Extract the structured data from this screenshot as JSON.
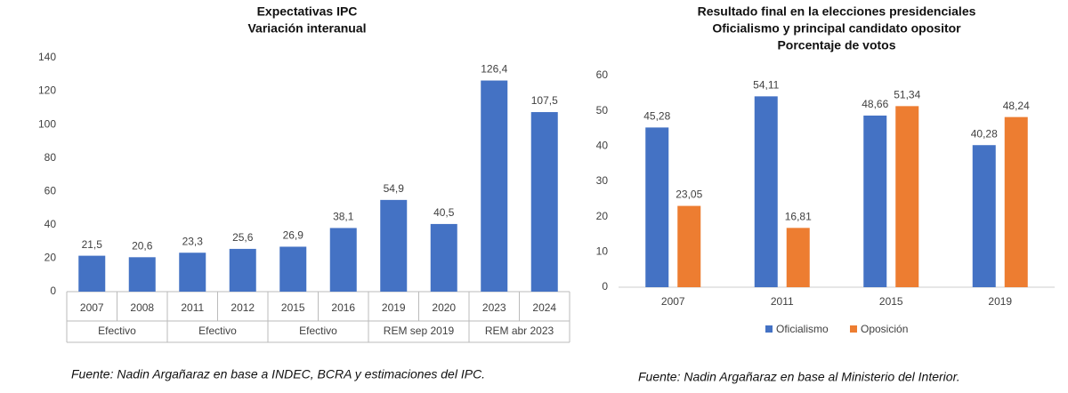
{
  "chart_data": [
    {
      "type": "bar",
      "title": [
        "Expectativas IPC",
        "Variación interanual"
      ],
      "color": "#4472c4",
      "groups": [
        {
          "name": "Efectivo",
          "categories": [
            "2007",
            "2008"
          ],
          "values": [
            21.5,
            20.6
          ],
          "value_labels": [
            "21,5",
            "20,6"
          ]
        },
        {
          "name": "Efectivo",
          "categories": [
            "2011",
            "2012"
          ],
          "values": [
            23.3,
            25.6
          ],
          "value_labels": [
            "23,3",
            "25,6"
          ]
        },
        {
          "name": "Efectivo",
          "categories": [
            "2015",
            "2016"
          ],
          "values": [
            26.9,
            38.1
          ],
          "value_labels": [
            "26,9",
            "38,1"
          ]
        },
        {
          "name": "REM sep 2019",
          "categories": [
            "2019",
            "2020"
          ],
          "values": [
            54.9,
            40.5
          ],
          "value_labels": [
            "54,9",
            "40,5"
          ]
        },
        {
          "name": "REM abr 2023",
          "categories": [
            "2023",
            "2024"
          ],
          "values": [
            126.4,
            107.5
          ],
          "value_labels": [
            "126,4",
            "107,5"
          ]
        }
      ],
      "ylim": [
        0,
        140
      ],
      "yticks": [
        0,
        20,
        40,
        60,
        80,
        100,
        120,
        140
      ],
      "note": "Fuente:  Nadin Argañaraz en base a INDEC, BCRA y estimaciones del IPC."
    },
    {
      "type": "bar",
      "title": [
        "Resultado final en la elecciones presidenciales",
        "Oficialismo y principal candidato opositor",
        "Porcentaje de votos"
      ],
      "categories": [
        "2007",
        "2011",
        "2015",
        "2019"
      ],
      "series": [
        {
          "name": "Oficialismo",
          "color": "#4472c4",
          "values": [
            45.28,
            54.11,
            48.66,
            40.28
          ],
          "value_labels": [
            "45,28",
            "54,11",
            "48,66",
            "40,28"
          ]
        },
        {
          "name": "Oposición",
          "color": "#ed7d31",
          "values": [
            23.05,
            16.81,
            51.34,
            48.24
          ],
          "value_labels": [
            "23,05",
            "16,81",
            "51,34",
            "48,24"
          ]
        }
      ],
      "ylim": [
        0,
        60
      ],
      "yticks": [
        0,
        10,
        20,
        30,
        40,
        50,
        60
      ],
      "legend": "bottom",
      "note": "Fuente:  Nadin Argañaraz en base al Ministerio del Interior."
    }
  ]
}
